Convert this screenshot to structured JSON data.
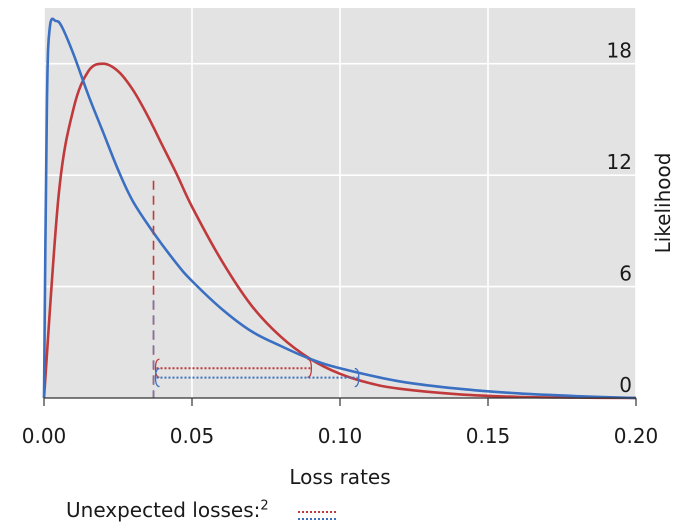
{
  "chart_data": {
    "type": "line",
    "xlabel": "Loss rates",
    "ylabel": "Likelihood",
    "xlim": [
      0,
      0.2
    ],
    "ylim": [
      0,
      21
    ],
    "x_ticks": [
      "0.00",
      "0.05",
      "0.10",
      "0.15",
      "0.20"
    ],
    "x_tick_values": [
      0,
      0.05,
      0.1,
      0.15,
      0.2
    ],
    "y_ticks": [
      "0",
      "6",
      "12",
      "18"
    ],
    "y_tick_values": [
      0,
      6,
      12,
      18
    ],
    "y_axis_side": "right",
    "grid": true,
    "background": "#e3e3e3",
    "series": [
      {
        "color": "#c0393b",
        "x": [
          0,
          0.005,
          0.01,
          0.015,
          0.02,
          0.025,
          0.03,
          0.035,
          0.04,
          0.045,
          0.05,
          0.06,
          0.07,
          0.08,
          0.09,
          0.1,
          0.11,
          0.12,
          0.14,
          0.16,
          0.18,
          0.2
        ],
        "y": [
          0,
          11.0,
          15.6,
          17.6,
          18.0,
          17.6,
          16.6,
          15.2,
          13.6,
          12.0,
          10.3,
          7.4,
          5.0,
          3.3,
          2.1,
          1.3,
          0.8,
          0.5,
          0.2,
          0.06,
          0.02,
          0
        ]
      },
      {
        "color": "#3a6fc2",
        "x": [
          0,
          0.001,
          0.002,
          0.004,
          0.006,
          0.01,
          0.015,
          0.02,
          0.025,
          0.03,
          0.037,
          0.045,
          0.05,
          0.06,
          0.07,
          0.08,
          0.09,
          0.1,
          0.12,
          0.14,
          0.16,
          0.18,
          0.2
        ],
        "y": [
          0,
          16.0,
          20.0,
          20.3,
          20.0,
          18.5,
          16.3,
          14.3,
          12.3,
          10.6,
          8.9,
          7.2,
          6.3,
          4.8,
          3.6,
          2.8,
          2.1,
          1.6,
          0.9,
          0.5,
          0.25,
          0.1,
          0
        ]
      }
    ],
    "expected_loss_line": {
      "x": 0.037,
      "y_top": 11.7
    },
    "unexpected_ranges": [
      {
        "color": "#c0393b",
        "x_start": 0.038,
        "x_end": 0.09,
        "y": 1.6
      },
      {
        "color": "#3a6fc2",
        "x_start": 0.038,
        "x_end": 0.106,
        "y": 1.1
      }
    ],
    "legend": {
      "label": "Unexpected losses:",
      "superscript": "2",
      "placement": "bottom-left"
    }
  }
}
